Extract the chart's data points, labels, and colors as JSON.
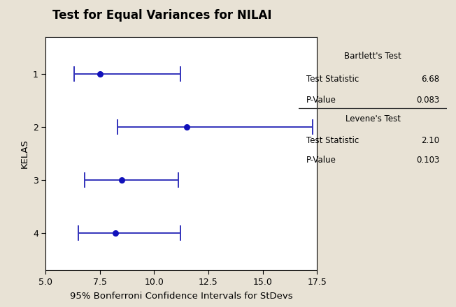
{
  "title": "Test for Equal Variances for NILAI",
  "xlabel": "95% Bonferroni Confidence Intervals for StDevs",
  "ylabel": "KELAS",
  "xlim": [
    5.0,
    17.5
  ],
  "ylim": [
    4.7,
    0.3
  ],
  "xticks": [
    5.0,
    7.5,
    10.0,
    12.5,
    15.0,
    17.5
  ],
  "yticks": [
    1,
    2,
    3,
    4
  ],
  "background_outer": "#e8e2d5",
  "background_plot": "#ffffff",
  "line_color": "#3333bb",
  "dot_color": "#1111bb",
  "groups": [
    1,
    2,
    3,
    4
  ],
  "centers": [
    7.5,
    11.5,
    8.5,
    8.2
  ],
  "lo": [
    6.3,
    8.3,
    6.8,
    6.5
  ],
  "hi": [
    11.2,
    17.3,
    11.1,
    11.2
  ],
  "bartlett_stat": "6.68",
  "bartlett_pval": "0.083",
  "levene_stat": "2.10",
  "levene_pval": "0.103",
  "box_bg": "#e8e2d5",
  "box_border": "#333333",
  "title_fontsize": 12,
  "axis_label_fontsize": 9.5,
  "tick_fontsize": 9,
  "stats_fontsize": 8.5,
  "stats_header_fontsize": 8.5
}
